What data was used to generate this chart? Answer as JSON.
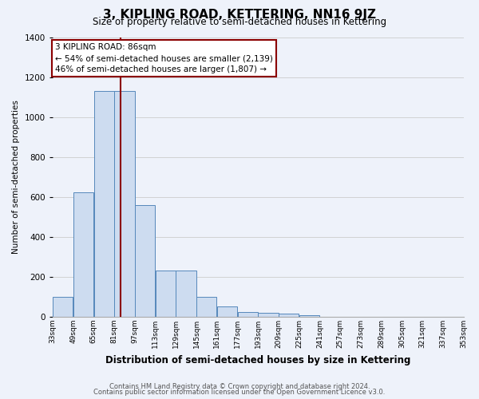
{
  "title": "3, KIPLING ROAD, KETTERING, NN16 9JZ",
  "subtitle": "Size of property relative to semi-detached houses in Kettering",
  "xlabel": "Distribution of semi-detached houses by size in Kettering",
  "ylabel": "Number of semi-detached properties",
  "footer_line1": "Contains HM Land Registry data © Crown copyright and database right 2024.",
  "footer_line2": "Contains public sector information licensed under the Open Government Licence v3.0.",
  "bin_edges": [
    33,
    49,
    65,
    81,
    97,
    113,
    129,
    145,
    161,
    177,
    193,
    209,
    225,
    241,
    257,
    273,
    289,
    305,
    321,
    337,
    353
  ],
  "bin_labels": [
    "33sqm",
    "49sqm",
    "65sqm",
    "81sqm",
    "97sqm",
    "113sqm",
    "129sqm",
    "145sqm",
    "161sqm",
    "177sqm",
    "193sqm",
    "209sqm",
    "225sqm",
    "241sqm",
    "257sqm",
    "273sqm",
    "289sqm",
    "305sqm",
    "321sqm",
    "337sqm",
    "353sqm"
  ],
  "bar_values": [
    100,
    625,
    1130,
    1130,
    560,
    230,
    230,
    100,
    50,
    25,
    20,
    15,
    10,
    0,
    0,
    0,
    0,
    0,
    0,
    0
  ],
  "bar_color": "#cddcf0",
  "bar_edge_color": "#5588bb",
  "ylim": [
    0,
    1400
  ],
  "yticks": [
    0,
    200,
    400,
    600,
    800,
    1000,
    1200,
    1400
  ],
  "vline_x": 86,
  "vline_color": "#8b0000",
  "annotation_line1": "3 KIPLING ROAD: 86sqm",
  "annotation_line2": "← 54% of semi-detached houses are smaller (2,139)",
  "annotation_line3": "46% of semi-detached houses are larger (1,807) →",
  "annotation_box_color": "#ffffff",
  "annotation_box_edge": "#8b0000",
  "background_color": "#eef2fa",
  "grid_color": "#cccccc",
  "title_fontsize": 11,
  "subtitle_fontsize": 8.5
}
